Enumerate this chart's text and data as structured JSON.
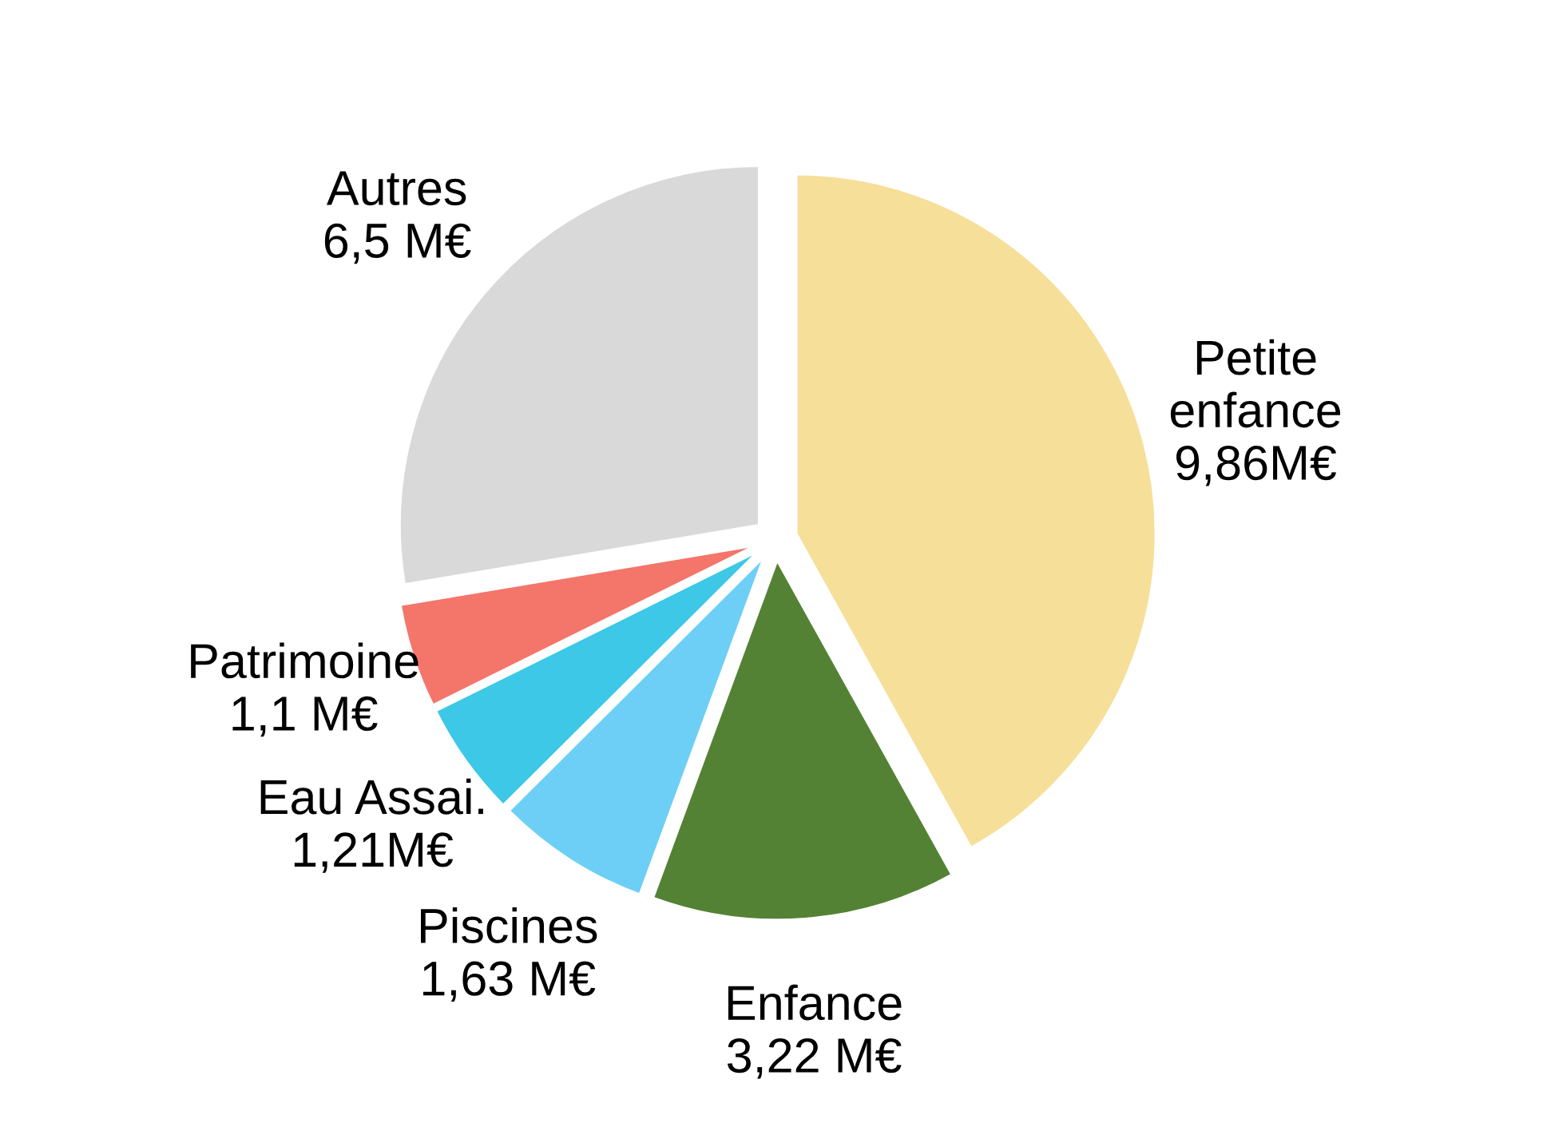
{
  "chart_data": {
    "type": "pie",
    "categories": [
      "Petite\nenfance",
      "Enfance",
      "Piscines",
      "Eau Assai.",
      "Patrimoine",
      "Autres"
    ],
    "values": [
      9.86,
      3.22,
      1.63,
      1.21,
      1.1,
      6.5
    ],
    "value_labels": [
      "9,86M€",
      "3,22 M€",
      "1,63 M€",
      "1,21M€",
      "1,1 M€",
      "6,5 M€"
    ],
    "colors": [
      "#f6df99",
      "#548235",
      "#6dcff6",
      "#3cc8e6",
      "#f4756a",
      "#d9d9d9"
    ],
    "legend": false
  }
}
